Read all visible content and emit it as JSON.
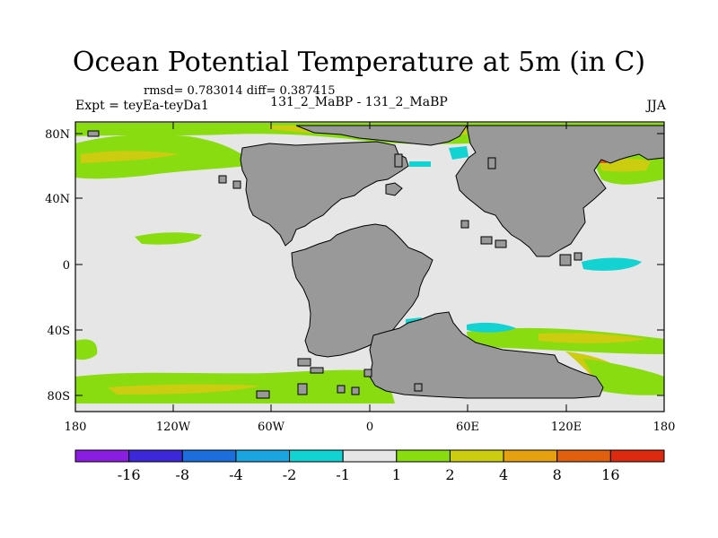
{
  "title": "Ocean Potential Temperature at 5m (in C)",
  "stats": "rmsd= 0.783014 diff= 0.387415",
  "expt_label": "Expt = teyEa-teyDa1",
  "expt_names": "131_2_MaBP - 131_2_MaBP",
  "season": "JJA",
  "lat_labels": [
    "80N",
    "40N",
    "0",
    "40S",
    "80S"
  ],
  "lon_labels": [
    "180",
    "120W",
    "60W",
    "0",
    "60E",
    "120E",
    "180"
  ],
  "colorbar": {
    "labels": [
      "-16",
      "-8",
      "-4",
      "-2",
      "-1",
      "1",
      "2",
      "4",
      "8",
      "16"
    ],
    "colors": [
      "#8a1ee0",
      "#3c28d8",
      "#1c6edc",
      "#1aa4e0",
      "#12d2d2",
      "#e6e6e6",
      "#88dc10",
      "#cccc10",
      "#e6a010",
      "#e06010",
      "#dc2a10"
    ]
  },
  "map_colors": {
    "ocean_neutral": "#e6e6e6",
    "land": "#999999",
    "coastline": "#000000"
  }
}
